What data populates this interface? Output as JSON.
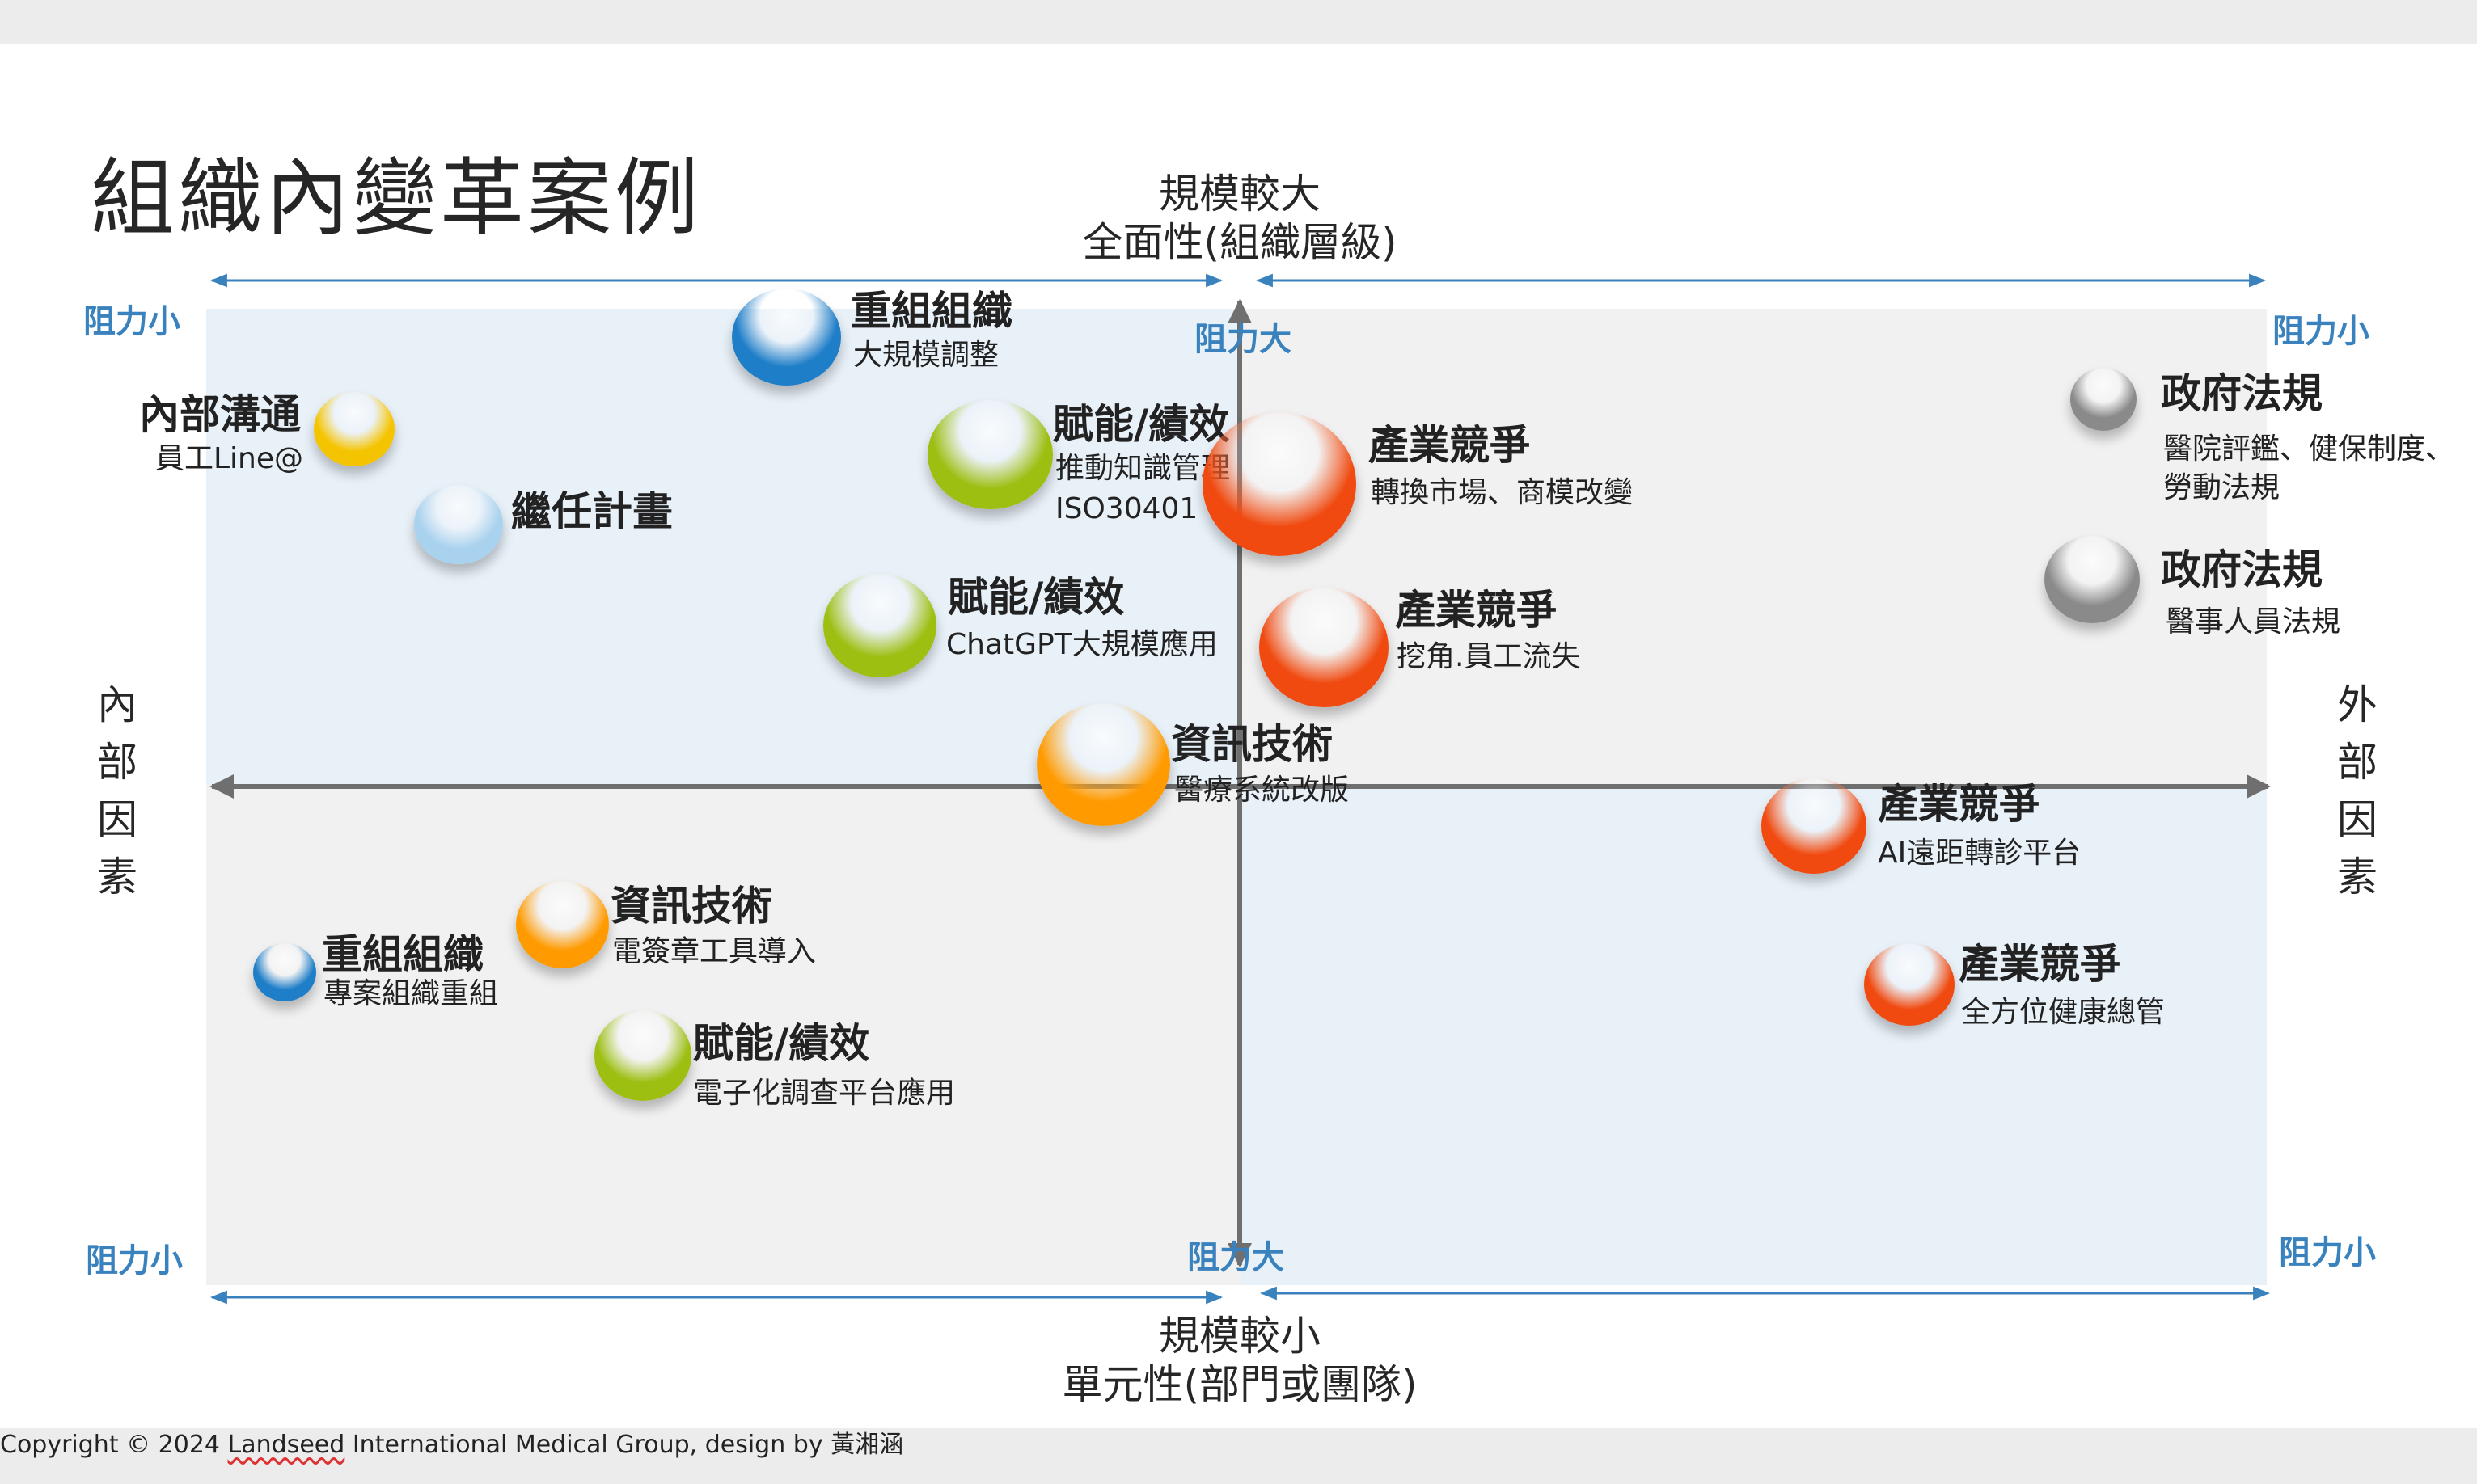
{
  "title": "組織內變革案例",
  "axes": {
    "top_line1": "規模較大",
    "top_line2": "全面性(組織層級)",
    "bottom_line1": "規模較小",
    "bottom_line2": "單元性(部門或團隊)",
    "left": [
      "內",
      "部",
      "因",
      "素"
    ],
    "right": [
      "外",
      "部",
      "因",
      "素"
    ]
  },
  "resistance": {
    "low": "阻力小",
    "high": "阻力大"
  },
  "bubbles": [
    {
      "title": "重組組織",
      "sub": "大規模調整",
      "color": "blue"
    },
    {
      "title": "內部溝通",
      "sub": "員工Line@",
      "color": "yellow"
    },
    {
      "title": "繼任計畫",
      "sub": "",
      "color": "lightblue"
    },
    {
      "title": "賦能/績效",
      "sub": "推動知識管理",
      "sub2": "ISO30401",
      "color": "green"
    },
    {
      "title": "賦能/績效",
      "sub": "ChatGPT大規模應用",
      "color": "green"
    },
    {
      "title": "產業競爭",
      "sub": "轉換市場、商模改變",
      "color": "red"
    },
    {
      "title": "產業競爭",
      "sub": "挖角.員工流失",
      "color": "red"
    },
    {
      "title": "政府法規",
      "sub": "醫院評鑑、健保制度、",
      "sub2": "勞動法規",
      "color": "grey"
    },
    {
      "title": "政府法規",
      "sub": "醫事人員法規",
      "color": "grey"
    },
    {
      "title": "資訊技術",
      "sub": "醫療系統改版",
      "color": "orange"
    },
    {
      "title": "產業競爭",
      "sub": "AI遠距轉診平台",
      "color": "red"
    },
    {
      "title": "產業競爭",
      "sub": "全方位健康總管",
      "color": "red"
    },
    {
      "title": "資訊技術",
      "sub": "電簽章工具導入",
      "color": "orange"
    },
    {
      "title": "重組組織",
      "sub": "專案組織重組",
      "color": "blue"
    },
    {
      "title": "賦能/績效",
      "sub": "電子化調查平台應用",
      "color": "green"
    }
  ],
  "colors": {
    "blue": "#1f7ec8",
    "yellow": "#f5c400",
    "lightblue": "#a9d2ee",
    "green": "#9cbf12",
    "red": "#f04a10",
    "grey": "#8a8a8a",
    "orange": "#ff9a00",
    "axis": "#6f6f6f",
    "blue_arrow": "#3a82bd"
  },
  "copyright": {
    "prefix": "Copyright © 2024 ",
    "underlined": "Landseed",
    "suffix": " International Medical Group, design by 黃湘涵"
  }
}
